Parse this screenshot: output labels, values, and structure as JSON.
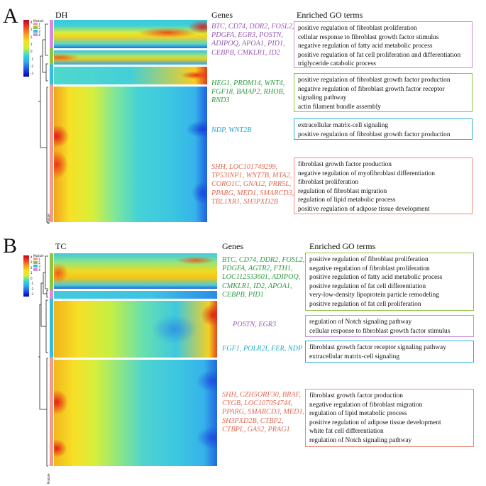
{
  "colors": {
    "purple": "#9b59b6",
    "green": "#2e9b3e",
    "cyan": "#26a6c9",
    "salmon": "#e06a56",
    "green_box": "#8cc63e",
    "purple_box": "#cc8fd6",
    "cyan_box": "#2ab0d8",
    "salmon_box": "#ec8b7a"
  },
  "panelA": {
    "letter": "A",
    "title": "DH",
    "genes_header": "Genes",
    "go_header": "Enriched GO terms",
    "legend": {
      "title": "Module",
      "ticks": [
        "4",
        "3",
        "2",
        "1",
        "0",
        "-1",
        "-2",
        "-3"
      ],
      "modules": [
        "1",
        "2",
        "3",
        "4"
      ],
      "axis_label": "Module"
    },
    "modules": [
      {
        "color": "purple",
        "genes": [
          "BTC, CD74, DDR2, FOSL2,",
          "PDGFA, EGR3, POSTN,",
          "ADIPOQ, APOA1, PID1,",
          "CEBPB, CMKLR1, ID2"
        ],
        "go_terms": [
          "positive regulation of fibroblast proliferation",
          "cellular response to fibroblast growth factor stimulus",
          "negative regulation of fatty acid metabolic process",
          "positive regulation of fat cell proliferation and differentiation",
          "triglyceride catabolic process"
        ]
      },
      {
        "color": "green",
        "genes": [
          "HEG1, PRDM14, WNT4,",
          "FGF18, BAIAP2, RHOB,",
          "RND3"
        ],
        "go_terms": [
          "positive regulation of fibroblast growth factor production",
          "negative regulation of fibroblast growth factor receptor",
          "signaling pathway",
          "actin filament bundle assembly"
        ]
      },
      {
        "color": "cyan",
        "genes": [
          "NDP, WNT2B"
        ],
        "go_terms": [
          "extracellular matrix-cell signaling",
          "positive regulation of fibroblast growth factor production"
        ]
      },
      {
        "color": "salmon",
        "genes": [
          "SHH, LOC101749299,",
          "TP53INP1, WNT7B, MTA2,",
          "CORO1C, GNA12, PRR5L,",
          "PPARG, MED1, SMARCD3,",
          "TBL1XR1, SH3PXD2B"
        ],
        "go_terms": [
          "fibroblast growth factor production",
          "negative regulation of myofibroblast differentiation",
          "fibroblast proliferation",
          "regulation of fibroblast migration",
          "regulation of lipid metabolic process",
          "positive regulation of adipose tissue development"
        ]
      }
    ]
  },
  "panelB": {
    "letter": "B",
    "title": "TC",
    "genes_header": "Genes",
    "go_header": "Enriched GO terms",
    "legend": {
      "title": "Module",
      "ticks": [
        "4",
        "3",
        "2",
        "1",
        "0",
        "-1",
        "-2",
        "-3"
      ],
      "modules": [
        "1",
        "2",
        "3",
        "4"
      ],
      "axis_label": "Module"
    },
    "modules": [
      {
        "color": "green",
        "genes": [
          "BTC, CD74, DDR2, FOSL2,",
          "PDGFA, AGTR2, FTH1,",
          "LOC112533601, ADIPOQ,",
          "CMKLR1, ID2, APOA1,",
          "CEBPB, PID1"
        ],
        "go_terms": [
          "positive regulation of fibroblast proliferation",
          "negative regulation of fibroblast proliferation",
          "positive regulation of fatty acid metabolic process",
          "positive regulation of fat cell differentiation",
          "very-low-density lipoprotein particle remodeling",
          "positive regulation of fat cell proliferation"
        ]
      },
      {
        "color": "purple",
        "genes": [
          "POSTN, EGR3"
        ],
        "go_terms": [
          "regulation of Notch signaling pathway",
          "cellular response to fibroblast growth factor stimulus"
        ]
      },
      {
        "color": "cyan",
        "genes": [
          "FGF1, POLR2I, FER, NDP"
        ],
        "go_terms": [
          "fibroblast growth factor receptor signaling pathway",
          "extracellular matrix-cell signaling"
        ]
      },
      {
        "color": "salmon",
        "genes": [
          "SHH, CZH5ORF30, BRAF,",
          "CYGB, LOC107054744,",
          "PPARG, SMARCD3, MED1,",
          "SH3PXD2B, CTBP2,",
          "CTBPL, GAS2, PRAG1"
        ],
        "go_terms": [
          "fibroblast growth factor production",
          "negative regulation of fibroblast migration",
          "regulation of lipid metabolic process",
          "positive regulation of adipose tissue development",
          "white fat cell differentiation",
          "regulation of Notch signaling pathway"
        ]
      }
    ]
  }
}
